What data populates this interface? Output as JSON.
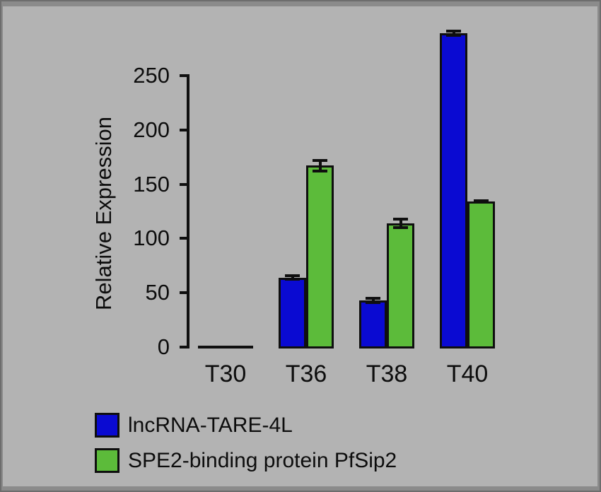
{
  "figure": {
    "canvas_color": "#b3b3b3",
    "frame_color": "#8b8b8b",
    "ink_color": "#0f0f0f"
  },
  "chart_data": {
    "type": "bar",
    "title": "",
    "xlabel": "",
    "ylabel": "Relative Expression",
    "categories": [
      "T30",
      "T36",
      "T38",
      "T40"
    ],
    "y_ticks": [
      0,
      50,
      100,
      150,
      200,
      250
    ],
    "ylim": [
      0,
      250
    ],
    "grid": false,
    "legend_position": "bottom-left",
    "series": [
      {
        "name": "lncRNA-TARE-4L",
        "color": "#0a0ad2",
        "values": [
          0,
          64,
          43,
          289
        ],
        "errors": [
          0,
          3,
          3,
          3
        ]
      },
      {
        "name": "SPE2-binding protein PfSip2",
        "color": "#5cbb3a",
        "values": [
          0,
          167,
          114,
          134
        ],
        "errors": [
          0,
          6,
          5,
          2
        ]
      }
    ]
  }
}
